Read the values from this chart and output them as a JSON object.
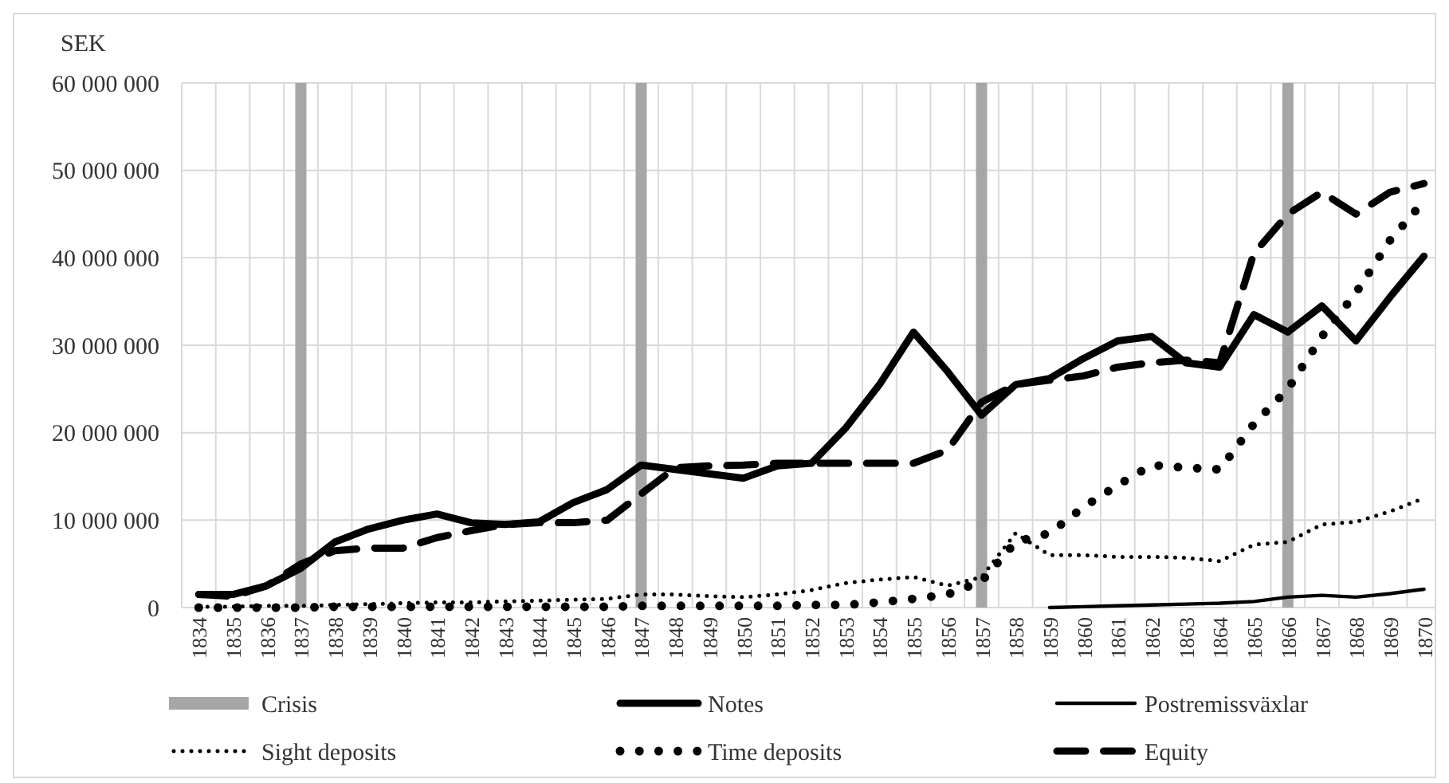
{
  "chart_data": {
    "type": "line",
    "ylabel": "SEK",
    "categories": [
      "1834",
      "1835",
      "1836",
      "1837",
      "1838",
      "1839",
      "1840",
      "1841",
      "1842",
      "1843",
      "1844",
      "1845",
      "1846",
      "1847",
      "1848",
      "1849",
      "1850",
      "1851",
      "1852",
      "1853",
      "1854",
      "1855",
      "1856",
      "1857",
      "1858",
      "1859",
      "1860",
      "1861",
      "1862",
      "1863",
      "1864",
      "1865",
      "1866",
      "1867",
      "1868",
      "1869",
      "1870"
    ],
    "ylim": [
      0,
      60000000
    ],
    "yticks": [
      {
        "value": 0,
        "label": "0"
      },
      {
        "value": 10000000,
        "label": "10 000 000"
      },
      {
        "value": 20000000,
        "label": "20 000 000"
      },
      {
        "value": 30000000,
        "label": "30 000 000"
      },
      {
        "value": 40000000,
        "label": "40 000 000"
      },
      {
        "value": 50000000,
        "label": "50 000 000"
      },
      {
        "value": 60000000,
        "label": "60 000 000"
      }
    ],
    "grid": true,
    "legend": "bottom",
    "series": [
      {
        "name": "Crisis",
        "type": "bar",
        "color": "#a6a6a6",
        "values": [
          null,
          null,
          null,
          60000000,
          null,
          null,
          null,
          null,
          null,
          null,
          null,
          null,
          null,
          60000000,
          null,
          null,
          null,
          null,
          null,
          null,
          null,
          null,
          null,
          60000000,
          null,
          null,
          null,
          null,
          null,
          null,
          null,
          null,
          60000000,
          null,
          null,
          null,
          null
        ]
      },
      {
        "name": "Notes",
        "color": "#000000",
        "line_style": "solid",
        "values": [
          1500000,
          1500000,
          2500000,
          4500000,
          7500000,
          9000000,
          10000000,
          10700000,
          9700000,
          9500000,
          9800000,
          12000000,
          13500000,
          16300000,
          15800000,
          15300000,
          14800000,
          16200000,
          16500000,
          20500000,
          25500000,
          31500000,
          27000000,
          22000000,
          25500000,
          26200000,
          28500000,
          30500000,
          31000000,
          28000000,
          27500000,
          33500000,
          31500000,
          34500000,
          30500000,
          35500000,
          40200000
        ]
      },
      {
        "name": "Postremissväxlar",
        "color": "#000000",
        "line_style": "solid",
        "values": [
          null,
          null,
          null,
          null,
          null,
          null,
          null,
          null,
          null,
          null,
          null,
          null,
          null,
          null,
          null,
          null,
          null,
          null,
          null,
          null,
          null,
          null,
          null,
          null,
          null,
          0,
          100000,
          200000,
          300000,
          400000,
          500000,
          700000,
          1200000,
          1400000,
          1200000,
          1600000,
          2100000
        ]
      },
      {
        "name": "Sight deposits",
        "color": "#000000",
        "line_style": "dotted",
        "values": [
          100000,
          100000,
          200000,
          200000,
          300000,
          400000,
          500000,
          600000,
          600000,
          700000,
          800000,
          900000,
          1000000,
          1500000,
          1500000,
          1300000,
          1200000,
          1500000,
          2000000,
          2800000,
          3200000,
          3500000,
          2500000,
          3500000,
          8500000,
          6000000,
          6000000,
          5800000,
          5800000,
          5700000,
          5300000,
          7200000,
          7500000,
          9500000,
          9800000,
          11000000,
          12500000
        ]
      },
      {
        "name": "Time deposits",
        "color": "#000000",
        "line_style": "dotted",
        "values": [
          0,
          0,
          0,
          0,
          100000,
          100000,
          100000,
          100000,
          100000,
          100000,
          100000,
          100000,
          100000,
          200000,
          200000,
          200000,
          200000,
          200000,
          300000,
          300000,
          600000,
          1000000,
          1500000,
          3000000,
          7500000,
          8500000,
          11500000,
          14000000,
          16300000,
          16000000,
          15800000,
          21000000,
          25000000,
          31000000,
          36000000,
          42000000,
          46500000
        ]
      },
      {
        "name": "Equity",
        "color": "#000000",
        "line_style": "dashed",
        "values": [
          1500000,
          1300000,
          2500000,
          5000000,
          6500000,
          6800000,
          6800000,
          8000000,
          8800000,
          9500000,
          9700000,
          9700000,
          10000000,
          13000000,
          16000000,
          16200000,
          16300000,
          16500000,
          16500000,
          16500000,
          16500000,
          16500000,
          18000000,
          23500000,
          25500000,
          26000000,
          26500000,
          27500000,
          28000000,
          28300000,
          28000000,
          40500000,
          45000000,
          47500000,
          45000000,
          47500000,
          48500000
        ]
      }
    ]
  }
}
